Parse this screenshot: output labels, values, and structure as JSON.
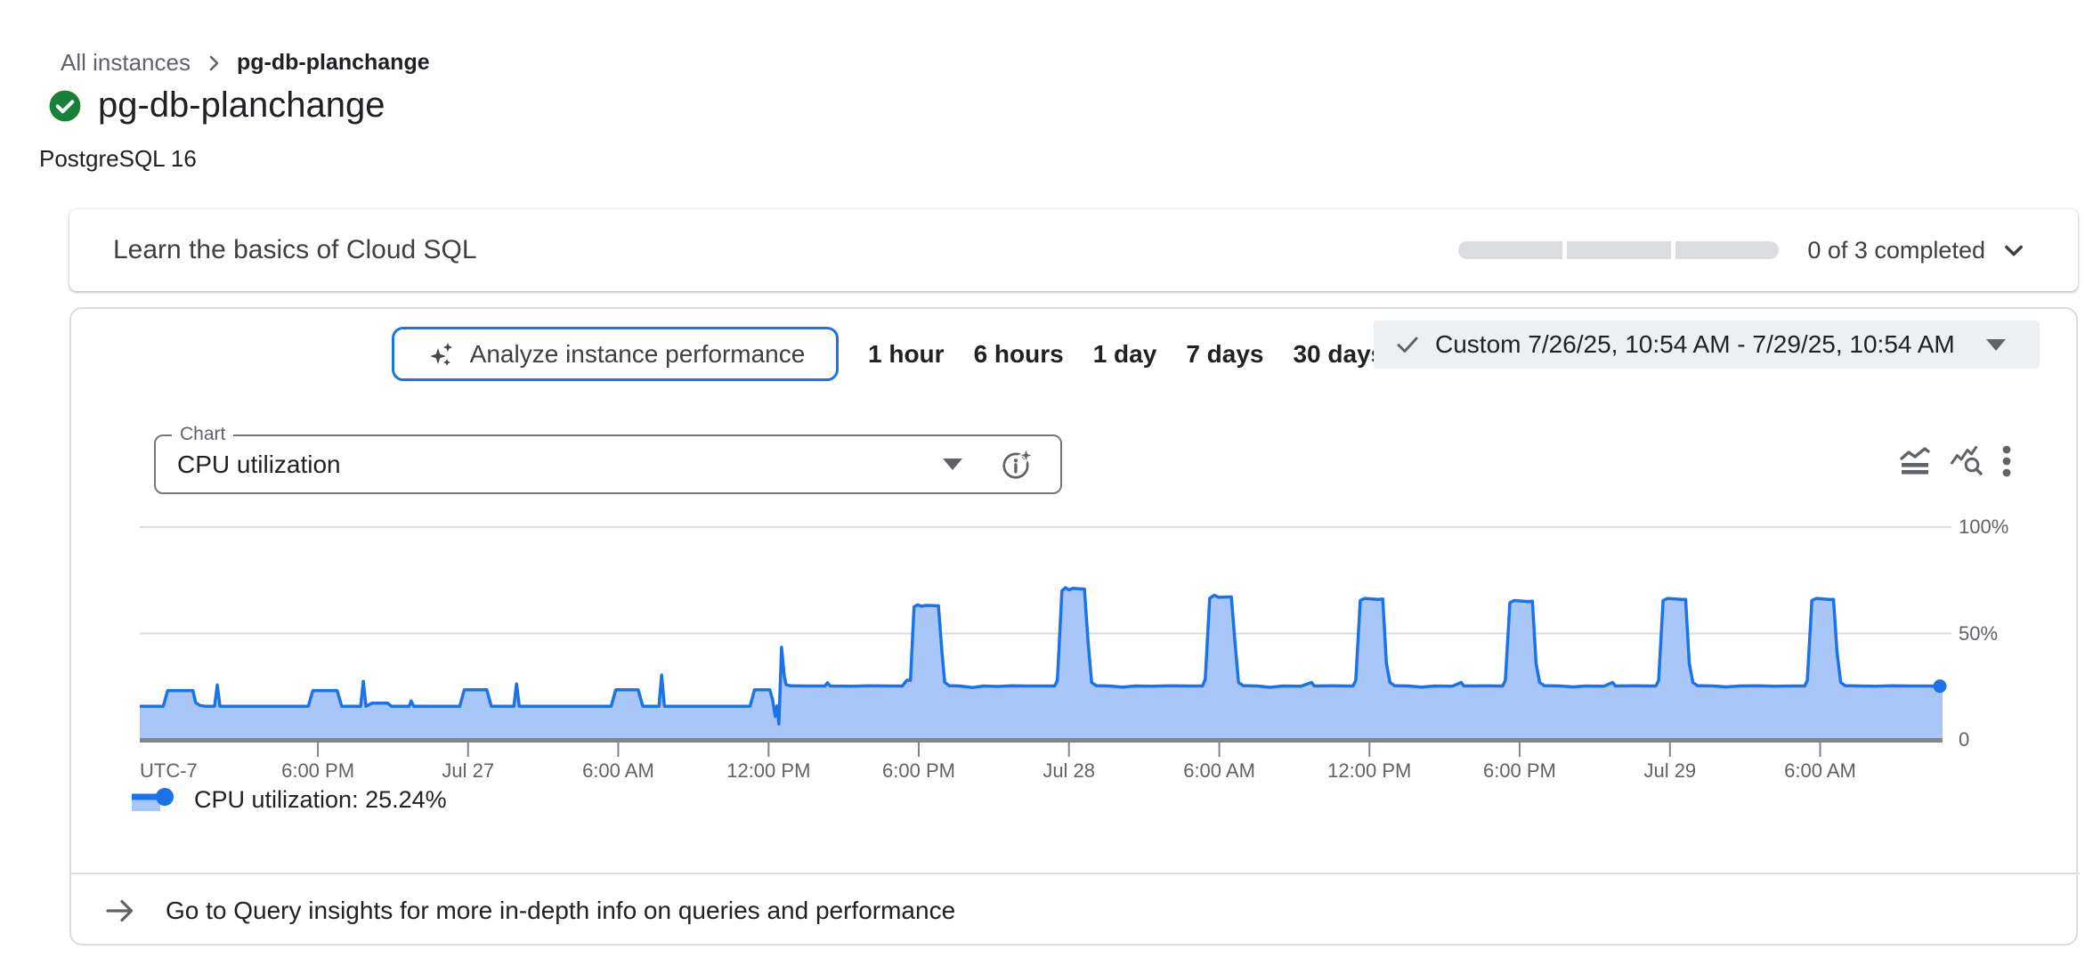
{
  "breadcrumb": {
    "parent": "All instances",
    "current": "pg-db-planchange"
  },
  "header": {
    "title": "pg-db-planchange",
    "status_icon": "check-circle-green",
    "subtitle": "PostgreSQL 16"
  },
  "learn_card": {
    "title": "Learn the basics of Cloud SQL",
    "progress_label": "0 of 3 completed",
    "progress_segments": 3,
    "progress_completed": 0
  },
  "toolbar": {
    "analyze_button": "Analyze instance performance",
    "ranges": [
      "1 hour",
      "6 hours",
      "1 day",
      "7 days",
      "30 days"
    ],
    "custom_range": "Custom 7/26/25, 10:54 AM - 7/29/25, 10:54 AM"
  },
  "chart_controls": {
    "field_label": "Chart",
    "selected_metric": "CPU utilization"
  },
  "chart_data": {
    "type": "area",
    "title": "CPU utilization",
    "ylim": [
      0,
      100
    ],
    "grid": "horizontal",
    "legend_position": "bottom-left",
    "utc_label": "UTC-7",
    "x_ticks": [
      {
        "label": "6:00 PM",
        "frac": 9.88
      },
      {
        "label": "Jul 27",
        "frac": 18.21
      },
      {
        "label": "6:00 AM",
        "frac": 26.54
      },
      {
        "label": "12:00 PM",
        "frac": 34.88
      },
      {
        "label": "6:00 PM",
        "frac": 43.21
      },
      {
        "label": "Jul 28",
        "frac": 51.54
      },
      {
        "label": "6:00 AM",
        "frac": 59.88
      },
      {
        "label": "12:00 PM",
        "frac": 68.21
      },
      {
        "label": "6:00 PM",
        "frac": 76.54
      },
      {
        "label": "Jul 29",
        "frac": 84.88
      },
      {
        "label": "6:00 AM",
        "frac": 93.21
      }
    ],
    "y_ticks": [
      {
        "label": "100%",
        "value": 100
      },
      {
        "label": "50%",
        "value": 50
      },
      {
        "label": "0",
        "value": 0
      }
    ],
    "series": [
      {
        "name": "CPU utilization",
        "last_value": 25.24,
        "points": [
          [
            0,
            15.8
          ],
          [
            1.3,
            15.8
          ],
          [
            1.55,
            23.2
          ],
          [
            2.95,
            23.2
          ],
          [
            3.1,
            17.5
          ],
          [
            3.35,
            16.2
          ],
          [
            3.6,
            15.8
          ],
          [
            4.15,
            15.8
          ],
          [
            4.3,
            25.8
          ],
          [
            4.45,
            15.8
          ],
          [
            9.35,
            15.8
          ],
          [
            9.6,
            23.2
          ],
          [
            10.95,
            23.2
          ],
          [
            11.2,
            15.8
          ],
          [
            12.25,
            15.8
          ],
          [
            12.4,
            27.5
          ],
          [
            12.55,
            15.8
          ],
          [
            12.9,
            17.3
          ],
          [
            13.75,
            17.3
          ],
          [
            13.95,
            15.8
          ],
          [
            14.95,
            15.8
          ],
          [
            15.05,
            18.3
          ],
          [
            15.2,
            15.8
          ],
          [
            17.75,
            15.8
          ],
          [
            18.0,
            23.5
          ],
          [
            19.25,
            23.5
          ],
          [
            19.5,
            15.8
          ],
          [
            20.75,
            15.8
          ],
          [
            20.9,
            26.3
          ],
          [
            21.05,
            15.8
          ],
          [
            26.15,
            15.8
          ],
          [
            26.4,
            23.5
          ],
          [
            27.65,
            23.5
          ],
          [
            27.9,
            15.8
          ],
          [
            28.8,
            15.8
          ],
          [
            28.95,
            30.5
          ],
          [
            29.1,
            15.8
          ],
          [
            33.85,
            15.8
          ],
          [
            34.1,
            23.5
          ],
          [
            34.95,
            23.5
          ],
          [
            35.1,
            19
          ],
          [
            35.25,
            11
          ],
          [
            35.35,
            16
          ],
          [
            35.45,
            7.5
          ],
          [
            35.6,
            43.5
          ],
          [
            35.75,
            30
          ],
          [
            35.85,
            26
          ],
          [
            36.1,
            25.4
          ],
          [
            37,
            25.3
          ],
          [
            38,
            25.3
          ],
          [
            38.15,
            26.8
          ],
          [
            38.3,
            25.3
          ],
          [
            39.5,
            25.2
          ],
          [
            40.5,
            25.4
          ],
          [
            41.5,
            25.3
          ],
          [
            42.3,
            25.3
          ],
          [
            42.55,
            28
          ],
          [
            42.75,
            28
          ],
          [
            42.95,
            62.5
          ],
          [
            43.15,
            63.5
          ],
          [
            43.35,
            62.8
          ],
          [
            43.6,
            63.2
          ],
          [
            44.3,
            63
          ],
          [
            44.5,
            41
          ],
          [
            44.65,
            27
          ],
          [
            44.9,
            25.5
          ],
          [
            45.5,
            25.3
          ],
          [
            46.2,
            24.6
          ],
          [
            46.8,
            25.3
          ],
          [
            47.6,
            25.1
          ],
          [
            48.4,
            25.4
          ],
          [
            49.3,
            25.3
          ],
          [
            50.2,
            25.3
          ],
          [
            50.75,
            25.3
          ],
          [
            50.9,
            28
          ],
          [
            51.15,
            70
          ],
          [
            51.35,
            71.5
          ],
          [
            51.55,
            70.5
          ],
          [
            51.75,
            71.2
          ],
          [
            52.4,
            70.8
          ],
          [
            52.6,
            46
          ],
          [
            52.8,
            27
          ],
          [
            53.05,
            25.5
          ],
          [
            53.8,
            25.3
          ],
          [
            54.5,
            24.8
          ],
          [
            55.2,
            25.3
          ],
          [
            56.2,
            25.2
          ],
          [
            57.2,
            25.4
          ],
          [
            58.2,
            25.3
          ],
          [
            58.95,
            25.3
          ],
          [
            59.1,
            28.5
          ],
          [
            59.35,
            66.5
          ],
          [
            59.6,
            68
          ],
          [
            59.85,
            67
          ],
          [
            60.55,
            67.2
          ],
          [
            60.75,
            46
          ],
          [
            60.95,
            27
          ],
          [
            61.2,
            25.5
          ],
          [
            62,
            25.3
          ],
          [
            62.7,
            24.7
          ],
          [
            63.4,
            25.3
          ],
          [
            64.4,
            25.2
          ],
          [
            65,
            27
          ],
          [
            65.15,
            25.3
          ],
          [
            66.2,
            25.4
          ],
          [
            67,
            25.3
          ],
          [
            67.3,
            25.3
          ],
          [
            67.45,
            28
          ],
          [
            67.7,
            65.5
          ],
          [
            67.95,
            66.5
          ],
          [
            68.7,
            66
          ],
          [
            68.95,
            66.2
          ],
          [
            69.15,
            36
          ],
          [
            69.35,
            27
          ],
          [
            69.6,
            25.5
          ],
          [
            70.4,
            25.3
          ],
          [
            71.1,
            24.8
          ],
          [
            71.8,
            25.3
          ],
          [
            72.8,
            25.2
          ],
          [
            73.3,
            27
          ],
          [
            73.45,
            25.3
          ],
          [
            74.6,
            25.4
          ],
          [
            75.3,
            25.3
          ],
          [
            75.6,
            25.3
          ],
          [
            75.75,
            28
          ],
          [
            76.0,
            64.5
          ],
          [
            76.25,
            65.5
          ],
          [
            77.0,
            65
          ],
          [
            77.25,
            65.2
          ],
          [
            77.45,
            36
          ],
          [
            77.65,
            27
          ],
          [
            77.9,
            25.5
          ],
          [
            78.8,
            25.3
          ],
          [
            79.5,
            24.9
          ],
          [
            80.2,
            25.3
          ],
          [
            81.2,
            25.2
          ],
          [
            81.7,
            27
          ],
          [
            81.85,
            25.3
          ],
          [
            83,
            25.4
          ],
          [
            83.8,
            25.3
          ],
          [
            84.1,
            25.3
          ],
          [
            84.25,
            28
          ],
          [
            84.5,
            65.5
          ],
          [
            84.75,
            66.5
          ],
          [
            85.5,
            66
          ],
          [
            85.75,
            66
          ],
          [
            85.95,
            36
          ],
          [
            86.15,
            27
          ],
          [
            86.4,
            25.5
          ],
          [
            87.3,
            25.3
          ],
          [
            88,
            24.9
          ],
          [
            88.7,
            25.3
          ],
          [
            89.7,
            25.4
          ],
          [
            90.7,
            25.2
          ],
          [
            91.7,
            25.3
          ],
          [
            92.35,
            25.3
          ],
          [
            92.5,
            28
          ],
          [
            92.75,
            65.5
          ],
          [
            93.0,
            66.5
          ],
          [
            93.7,
            66
          ],
          [
            93.95,
            66
          ],
          [
            94.15,
            41
          ],
          [
            94.35,
            27
          ],
          [
            94.6,
            25.5
          ],
          [
            95.4,
            25.3
          ],
          [
            96.3,
            25.2
          ],
          [
            97.2,
            25.4
          ],
          [
            98.2,
            25.3
          ],
          [
            99.2,
            25.3
          ],
          [
            100,
            25.24
          ]
        ]
      }
    ],
    "legend": "CPU utilization: 25.24%"
  },
  "footer": {
    "link": "Go to Query insights for more in-depth info on queries and performance"
  },
  "colors": {
    "accent_blue": "#1a73e8",
    "chart_line": "#1a73e8",
    "chart_fill": "#a9c6f8",
    "grid": "#dadce0",
    "axis": "#80868b",
    "text_primary": "#202124",
    "text_secondary": "#5f6368",
    "green_check": "#188038",
    "chip_bg": "#ecf0f2",
    "progress_track": "#dadce0",
    "card_border": "#dadce0"
  }
}
